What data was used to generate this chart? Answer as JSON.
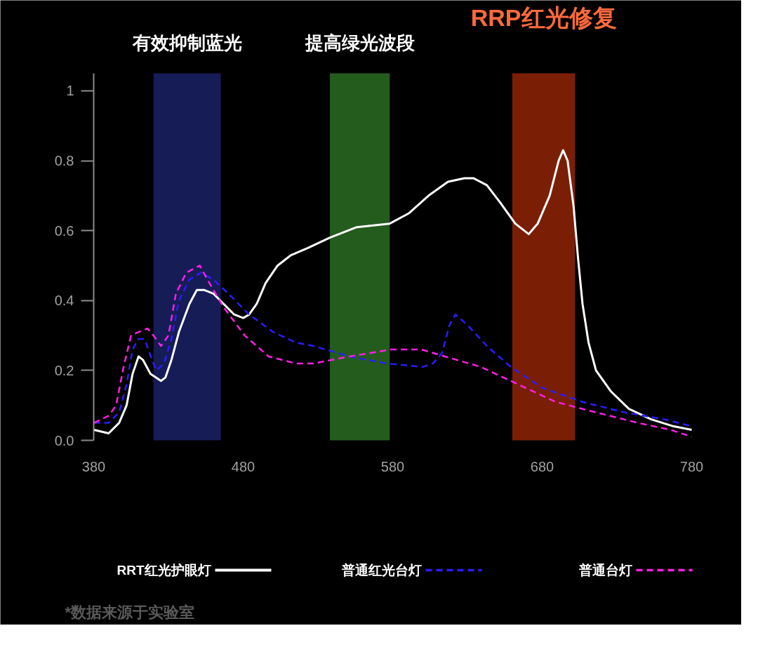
{
  "chart_data": {
    "type": "line",
    "xlim": [
      380,
      780
    ],
    "xticks": [
      380,
      480,
      580,
      680,
      780
    ],
    "ylim": [
      0,
      1.05
    ],
    "yticks": [
      {
        "value": 0,
        "label": "0.0"
      },
      0.2,
      0.4,
      0.6,
      0.8,
      1
    ],
    "grid": false,
    "legend": "bottom",
    "series": [
      {
        "name": "RRT红光护眼灯",
        "color": "#ffffff",
        "line_style": "solid",
        "x": [
          380,
          390,
          397,
          402,
          406,
          410,
          413,
          418,
          425,
          428,
          432,
          437,
          444,
          449,
          454,
          460,
          467,
          474,
          480,
          484,
          489,
          495,
          503,
          512,
          523,
          538,
          556,
          578,
          591,
          604,
          617,
          628,
          634,
          643,
          652,
          662,
          671,
          677,
          685,
          691,
          694,
          697,
          701,
          704,
          707,
          711,
          716,
          726,
          738,
          753,
          768,
          780
        ],
        "values": [
          0.03,
          0.02,
          0.05,
          0.1,
          0.19,
          0.24,
          0.23,
          0.19,
          0.17,
          0.18,
          0.23,
          0.31,
          0.39,
          0.43,
          0.43,
          0.42,
          0.39,
          0.36,
          0.35,
          0.36,
          0.39,
          0.45,
          0.5,
          0.53,
          0.55,
          0.58,
          0.61,
          0.62,
          0.65,
          0.7,
          0.74,
          0.75,
          0.75,
          0.73,
          0.68,
          0.62,
          0.59,
          0.62,
          0.7,
          0.8,
          0.83,
          0.8,
          0.67,
          0.52,
          0.39,
          0.28,
          0.2,
          0.14,
          0.09,
          0.06,
          0.04,
          0.03
        ]
      },
      {
        "name": "普通红光台灯",
        "color": "#2b1cff",
        "line_style": "dashed",
        "x": [
          380,
          390,
          397,
          402,
          406,
          410,
          414,
          419,
          422,
          427,
          432,
          437,
          444,
          452,
          460,
          470,
          484,
          500,
          515,
          527,
          551,
          576,
          600,
          607,
          613,
          618,
          622,
          630,
          643,
          659,
          680,
          707,
          735,
          762,
          780
        ],
        "values": [
          0.05,
          0.05,
          0.08,
          0.16,
          0.26,
          0.29,
          0.29,
          0.23,
          0.2,
          0.22,
          0.29,
          0.4,
          0.46,
          0.48,
          0.46,
          0.42,
          0.36,
          0.31,
          0.28,
          0.27,
          0.24,
          0.22,
          0.21,
          0.22,
          0.25,
          0.33,
          0.36,
          0.33,
          0.27,
          0.21,
          0.15,
          0.11,
          0.08,
          0.06,
          0.04
        ]
      },
      {
        "name": "普通台灯",
        "color": "#ff1fe6",
        "line_style": "dashed",
        "x": [
          380,
          390,
          395,
          400,
          405,
          410,
          416,
          420,
          425,
          430,
          435,
          442,
          451,
          456,
          467,
          481,
          497,
          515,
          527,
          551,
          579,
          599,
          615,
          639,
          664,
          689,
          716,
          744,
          766,
          780
        ],
        "values": [
          0.05,
          0.07,
          0.1,
          0.21,
          0.3,
          0.31,
          0.32,
          0.3,
          0.27,
          0.3,
          0.42,
          0.48,
          0.5,
          0.46,
          0.38,
          0.3,
          0.24,
          0.22,
          0.22,
          0.24,
          0.26,
          0.26,
          0.24,
          0.21,
          0.16,
          0.11,
          0.08,
          0.05,
          0.03,
          0.01
        ]
      }
    ],
    "bands": [
      {
        "axis": "x",
        "from": 420,
        "to": 465,
        "label": "有效抑制蓝光",
        "color": "#161c56"
      },
      {
        "axis": "x",
        "from": 538,
        "to": 578,
        "label": "提高绿光波段",
        "color": "#245c1e"
      },
      {
        "axis": "x",
        "from": 660,
        "to": 702,
        "color": "#7a1f06"
      }
    ],
    "annotations": [
      {
        "text": "RRP红光修复",
        "x": 681,
        "y": 1.05
      },
      "*数据来源于实验室"
    ]
  }
}
